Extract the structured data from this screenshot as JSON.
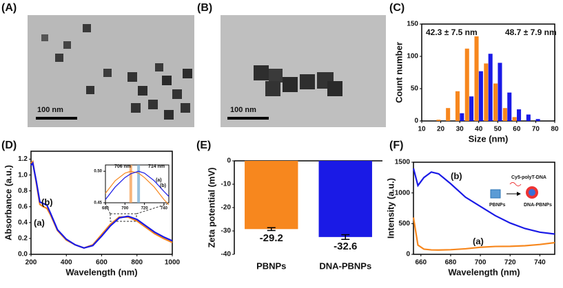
{
  "images": [
    {
      "label": "(A)",
      "scale_bar": "100 nm"
    },
    {
      "label": "(B)",
      "scale_bar": "100 nm"
    }
  ],
  "chart_data": [
    {
      "type": "bar",
      "label": "(C)",
      "xlabel": "Size (nm)",
      "ylabel": "Count number",
      "x": [
        20,
        25,
        30,
        35,
        40,
        45,
        50,
        55,
        60,
        65,
        70
      ],
      "series": [
        {
          "color": "#f7871e",
          "values": [
            2,
            20,
            46,
            112,
            131,
            89,
            58,
            20,
            6,
            0,
            0
          ]
        },
        {
          "color": "#1a1ae6",
          "values": [
            0,
            0,
            12,
            38,
            77,
            104,
            90,
            44,
            18,
            10,
            3
          ]
        }
      ],
      "xlim": [
        10,
        80
      ],
      "xticks": [
        10,
        20,
        30,
        40,
        50,
        60,
        70,
        80
      ],
      "ylim": [
        0,
        150
      ],
      "yticks": [
        0,
        50,
        100,
        150
      ],
      "annotations": [
        {
          "text": "42.3 ± 7.5 nm",
          "color": "#f7871e"
        },
        {
          "text": "48.7 ± 7.9 nm",
          "color": "#1a1ae6"
        }
      ]
    },
    {
      "type": "line",
      "label": "(D)",
      "xlabel": "Wavelength (nm)",
      "ylabel": "Absorbance (a.u.)",
      "x": [
        200,
        210,
        230,
        250,
        270,
        290,
        310,
        350,
        400,
        450,
        500,
        550,
        600,
        650,
        700,
        750,
        800,
        850,
        900,
        950,
        1000
      ],
      "series": [
        {
          "color": "#f7871e",
          "values": [
            1.15,
            1.17,
            0.9,
            0.63,
            0.6,
            0.58,
            0.5,
            0.3,
            0.18,
            0.12,
            0.08,
            0.12,
            0.25,
            0.38,
            0.47,
            0.47,
            0.42,
            0.34,
            0.26,
            0.2,
            0.15
          ]
        },
        {
          "color": "#1a1ae6",
          "values": [
            1.12,
            1.15,
            0.92,
            0.66,
            0.64,
            0.62,
            0.52,
            0.31,
            0.19,
            0.12,
            0.08,
            0.11,
            0.23,
            0.36,
            0.46,
            0.48,
            0.44,
            0.36,
            0.28,
            0.22,
            0.17
          ]
        }
      ],
      "xlim": [
        200,
        1000
      ],
      "xticks": [
        200,
        400,
        600,
        800,
        1000
      ],
      "ylim": [
        0,
        1.3
      ],
      "yticks": [
        {
          "value": 0,
          "label": "0.0"
        },
        0.2,
        0.4,
        0.6,
        0.8,
        {
          "value": 1,
          "label": "1.0"
        },
        1.2
      ],
      "annotations": [
        {
          "text": "(b)",
          "color": "#111"
        },
        {
          "text": "(a)",
          "color": "#111"
        }
      ]
    },
    {
      "type": "line",
      "x": [
        680,
        690,
        700,
        706,
        714,
        720,
        730,
        740,
        745
      ],
      "series": [
        {
          "color": "#f7871e",
          "values": [
            0.465,
            0.485,
            0.497,
            0.5,
            0.497,
            0.49,
            0.475,
            0.455,
            0.447
          ]
        },
        {
          "color": "#1a1ae6",
          "values": [
            0.455,
            0.475,
            0.49,
            0.496,
            0.5,
            0.497,
            0.485,
            0.468,
            0.46
          ]
        }
      ],
      "xlim": [
        680,
        745
      ],
      "xticks": [
        680,
        700,
        720,
        740
      ],
      "ylim": [
        0.45,
        0.51
      ],
      "yticks": [
        0.45,
        {
          "value": 0.5,
          "label": "0.50"
        }
      ],
      "vlines": [
        706,
        714
      ],
      "vline_colors": [
        "#f7a35c",
        "#7fb2d6"
      ],
      "annotations": [
        {
          "text": "706 nm",
          "color": "#111"
        },
        {
          "text": "714 nm",
          "color": "#111"
        },
        {
          "text": "(a)",
          "color": "#111"
        },
        {
          "text": "(b)",
          "color": "#111"
        }
      ]
    },
    {
      "type": "bar",
      "label": "(E)",
      "ylabel": "Zeta potential (mV)",
      "categories": [
        "PBNPs",
        "DNA-PBNPs"
      ],
      "values": [
        -29.2,
        -32.6
      ],
      "errors": [
        0.6,
        1.0
      ],
      "colors": [
        "#f7871e",
        "#1a1ae6"
      ],
      "ylim": [
        -40,
        0
      ],
      "yticks": [
        0,
        -10,
        -20,
        -30,
        -40
      ]
    },
    {
      "type": "line",
      "label": "(F)",
      "xlabel": "Wavelength (nm)",
      "ylabel": "Intensity (a.u.)",
      "x": [
        655,
        658,
        662,
        667,
        672,
        680,
        690,
        700,
        710,
        720,
        730,
        740,
        750
      ],
      "series": [
        {
          "color": "#1a1ae6",
          "values": [
            1400,
            1120,
            1250,
            1340,
            1310,
            1150,
            930,
            780,
            630,
            510,
            420,
            360,
            330
          ]
        },
        {
          "color": "#f7871e",
          "values": [
            600,
            150,
            85,
            72,
            70,
            75,
            90,
            115,
            128,
            130,
            140,
            160,
            190
          ]
        }
      ],
      "xlim": [
        655,
        750
      ],
      "xticks": [
        660,
        680,
        700,
        720,
        740
      ],
      "ylim": [
        0,
        1500
      ],
      "yticks": [
        0,
        500,
        1000,
        1500
      ],
      "annotations": [
        {
          "text": "(b)",
          "color": "#111"
        },
        {
          "text": "(a)",
          "color": "#111"
        },
        {
          "text": "Cy5-polyT-DNA",
          "color": "#111"
        },
        {
          "text": "PBNPs",
          "color": "#111"
        },
        {
          "text": "DNA-PBNPs",
          "color": "#111"
        }
      ]
    }
  ]
}
